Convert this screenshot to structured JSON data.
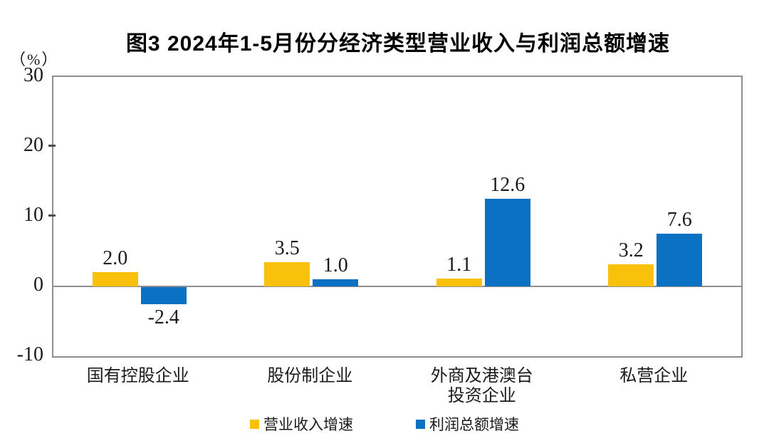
{
  "title": "图3  2024年1-5月份分经济类型营业收入与利润总额增速",
  "colors": {
    "series_revenue": "#F9C00C",
    "series_profit": "#0B72C3",
    "axis_line": "#8f8f8f",
    "text": "#1a1a1a",
    "background": "#ffffff"
  },
  "chart_data": {
    "type": "bar",
    "title": "图3  2024年1-5月份分经济类型营业收入与利润总额增速",
    "ylabel": "（%）",
    "xlabel": "",
    "categories": [
      "国有控股企业",
      "股份制企业",
      "外商及港澳台\n投资企业",
      "私营企业"
    ],
    "series": [
      {
        "name": "营业收入增速",
        "color": "#F9C00C",
        "values": [
          2.0,
          3.5,
          1.1,
          3.2
        ]
      },
      {
        "name": "利润总额增速",
        "color": "#0B72C3",
        "values": [
          -2.4,
          1.0,
          12.6,
          7.6
        ]
      }
    ],
    "value_labels": [
      "2.0",
      "-2.4",
      "3.5",
      "1.0",
      "1.1",
      "12.6",
      "3.2",
      "7.6"
    ],
    "ylim": [
      -10,
      30
    ],
    "yticks": [
      30,
      20,
      10,
      0,
      -10
    ],
    "grid": false,
    "legend_position": "bottom"
  }
}
